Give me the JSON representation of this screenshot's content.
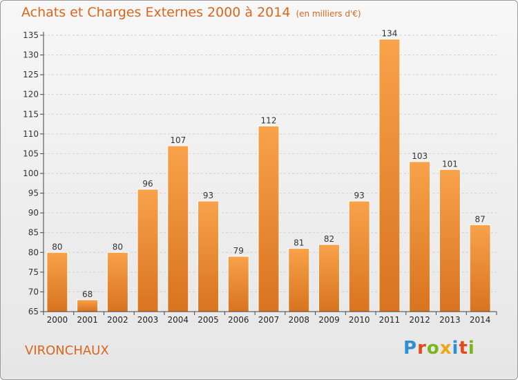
{
  "title": "Achats et Charges Externes 2000 à 2014",
  "unit": "(en milliers d'€)",
  "place": "VIRONCHAUX",
  "logo": {
    "text": "Proxiti",
    "letter_colors": [
      "#2f8fd3",
      "#e24a1b",
      "#7ab51d",
      "#f2a316",
      "#2f8fd3",
      "#e24a1b",
      "#7ab51d"
    ]
  },
  "colors": {
    "bar_light": "#f8a24a",
    "bar_dark": "#d9731f",
    "text": "#d9661b",
    "axis": "#444444",
    "grid": "#cfcfcf"
  },
  "chart_data": {
    "type": "bar",
    "title": "Achats et Charges Externes 2000 à 2014",
    "subtitle": "(en milliers d'€)",
    "categories": [
      "2000",
      "2001",
      "2002",
      "2003",
      "2004",
      "2005",
      "2006",
      "2007",
      "2008",
      "2009",
      "2010",
      "2011",
      "2012",
      "2013",
      "2014"
    ],
    "values": [
      80,
      68,
      80,
      96,
      107,
      93,
      79,
      112,
      81,
      82,
      93,
      134,
      103,
      101,
      87
    ],
    "ylim": [
      65,
      135
    ],
    "yticks": [
      65,
      70,
      75,
      80,
      85,
      90,
      95,
      100,
      105,
      110,
      115,
      120,
      125,
      130,
      135
    ],
    "grid": true,
    "xlabel": "",
    "ylabel": ""
  }
}
